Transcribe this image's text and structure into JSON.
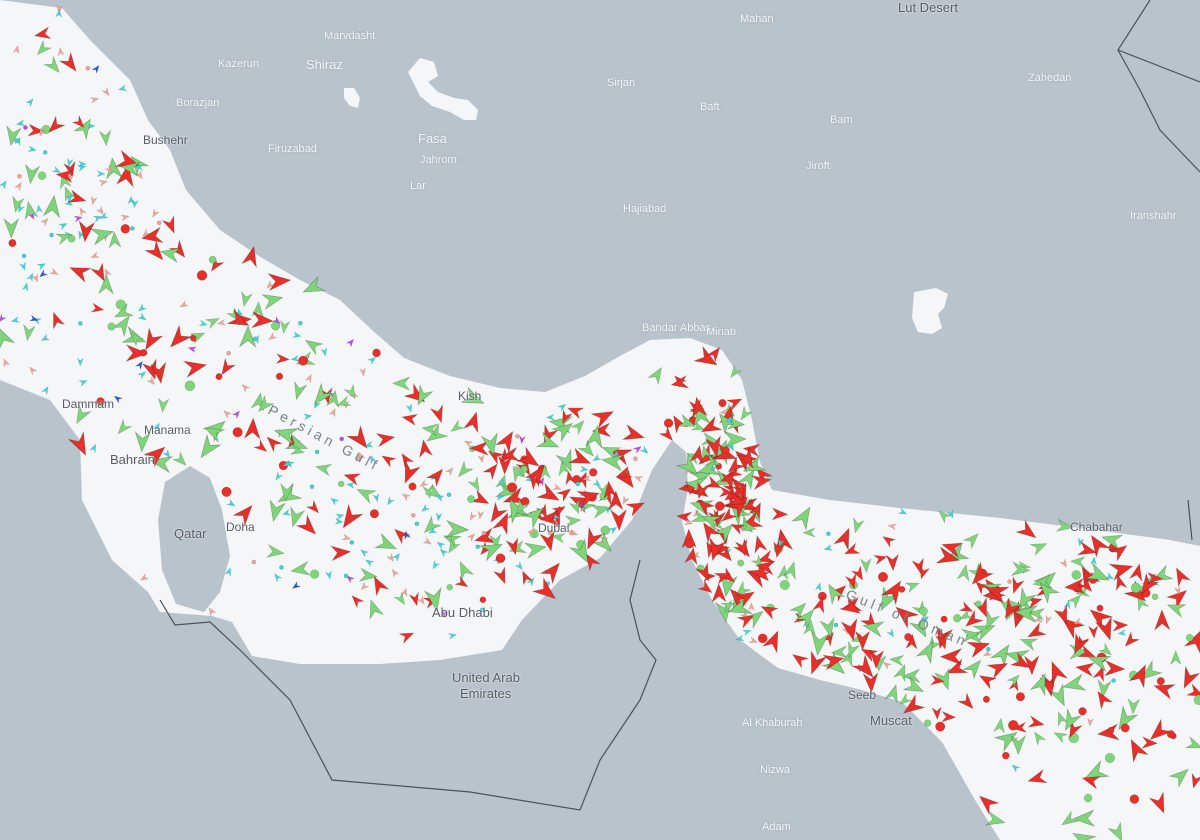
{
  "map": {
    "land_color": "#b9c3cc",
    "sea_color": "#f5f6f7",
    "border_color": "#4a525a",
    "labels": {
      "lut_desert": "Lut Desert",
      "mahan": "Mahan",
      "sirjan": "Sirjan",
      "baft": "Baft",
      "bam": "Bam",
      "jiroft": "Jiroft",
      "zahedan": "Zahedan",
      "iranshahr": "Iranshahr",
      "hajiabad": "Hajiabad",
      "marvdasht": "Marvdasht",
      "shiraz": "Shiraz",
      "kazerun": "Kazerun",
      "borazjan": "Borazjan",
      "bushehr": "Bushehr",
      "firuzabad": "Firuzabad",
      "fasa": "Fasa",
      "jahrom": "Jahrom",
      "lar": "Lar",
      "bandar_abbas": "Bandar Abbas",
      "minab": "Minab",
      "kish": "Kish",
      "dammam": "Dammam",
      "manama": "Manama",
      "bahrain": "Bahrain",
      "qatar": "Qatar",
      "doha": "Doha",
      "dubai": "Dubai",
      "abu_dhabi": "Abu Dhabi",
      "uae_line1": "United Arab",
      "uae_line2": "Emirates",
      "chabahar": "Chabahar",
      "seeb": "Seeb",
      "muscat": "Muscat",
      "al_khaburah": "Al Khaburah",
      "nizwa": "Nizwa",
      "adam": "Adam",
      "persian_gulf": "Persian Gulf",
      "gulf_of_oman": "Gulf of Oman"
    }
  },
  "vessel_colors": {
    "tanker": "#e8302a",
    "cargo": "#7fd67a",
    "passenger": "#3fd4dc",
    "fishing": "#f0a596",
    "pleasure": "#c04ae6",
    "tug": "#2a55e0",
    "other": "#e8c030"
  }
}
